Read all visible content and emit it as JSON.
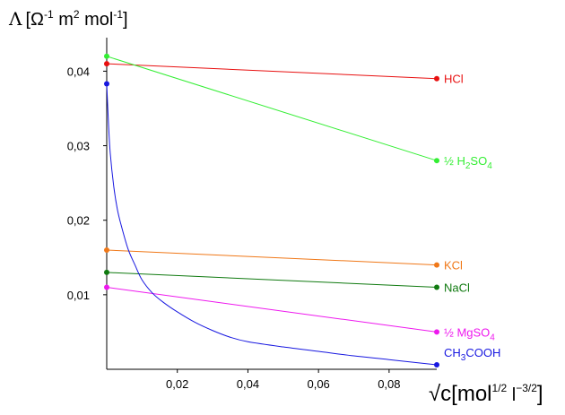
{
  "chart_data": {
    "type": "line",
    "title": "",
    "ylabel": {
      "symbol": "Λ",
      "text_before": "[Ω",
      "sup1": "-1",
      "text_mid": " m",
      "sup2": "2",
      "text_mid2": " mol",
      "sup3": "-1",
      "text_after": "]"
    },
    "xlabel": {
      "radical": "√c",
      "text_before": "[mol",
      "sup1": "1/2",
      "text_mid": " l",
      "sup2": "−3/2",
      "text_after": "]"
    },
    "xlim": [
      0,
      0.0935
    ],
    "ylim": [
      0,
      0.0445
    ],
    "xticks": [
      {
        "value": 0.02,
        "label": "0,02"
      },
      {
        "value": 0.04,
        "label": "0,04"
      },
      {
        "value": 0.06,
        "label": "0,06"
      },
      {
        "value": 0.08,
        "label": "0,08"
      }
    ],
    "yticks": [
      {
        "value": 0.01,
        "label": "0,01"
      },
      {
        "value": 0.02,
        "label": "0,02"
      },
      {
        "value": 0.03,
        "label": "0,03"
      },
      {
        "value": 0.04,
        "label": "0,04"
      }
    ],
    "grid": false,
    "series": [
      {
        "name": "HCl",
        "color": "#e81010",
        "label_parts": [
          {
            "t": "HCl"
          }
        ],
        "x": [
          0,
          0.0935
        ],
        "y": [
          0.041,
          0.039
        ]
      },
      {
        "name": "½ H2SO4",
        "color": "#33ee33",
        "label_parts": [
          {
            "t": "½ H"
          },
          {
            "t": "2",
            "sub": true
          },
          {
            "t": "SO"
          },
          {
            "t": "4",
            "sub": true
          }
        ],
        "x": [
          0,
          0.0935
        ],
        "y": [
          0.042,
          0.028
        ]
      },
      {
        "name": "KCl",
        "color": "#f07818",
        "label_parts": [
          {
            "t": "KCl"
          }
        ],
        "x": [
          0,
          0.0935
        ],
        "y": [
          0.016,
          0.014
        ]
      },
      {
        "name": "NaCl",
        "color": "#107a10",
        "label_parts": [
          {
            "t": "NaCl"
          }
        ],
        "x": [
          0,
          0.0935
        ],
        "y": [
          0.013,
          0.011
        ]
      },
      {
        "name": "½ MgSO4",
        "color": "#ee18ee",
        "label_parts": [
          {
            "t": "½ MgSO"
          },
          {
            "t": "4",
            "sub": true
          }
        ],
        "x": [
          0,
          0.0935
        ],
        "y": [
          0.011,
          0.005
        ]
      },
      {
        "name": "CH3COOH",
        "color": "#1818e0",
        "label_parts": [
          {
            "t": "CH"
          },
          {
            "t": "3",
            "sub": true
          },
          {
            "t": "COOH"
          }
        ],
        "x": [
          0,
          0.0005,
          0.001,
          0.002,
          0.003,
          0.004,
          0.006,
          0.008,
          0.01,
          0.013,
          0.016,
          0.02,
          0.025,
          0.03,
          0.035,
          0.04,
          0.05,
          0.06,
          0.07,
          0.08,
          0.0935
        ],
        "y": [
          0.0383,
          0.033,
          0.029,
          0.0245,
          0.0215,
          0.0195,
          0.0162,
          0.014,
          0.012,
          0.0102,
          0.009,
          0.0077,
          0.0063,
          0.0052,
          0.0043,
          0.0037,
          0.003,
          0.0024,
          0.0018,
          0.0013,
          0.0006
        ],
        "smooth": true,
        "marker_indices": [
          0,
          20
        ]
      }
    ]
  }
}
